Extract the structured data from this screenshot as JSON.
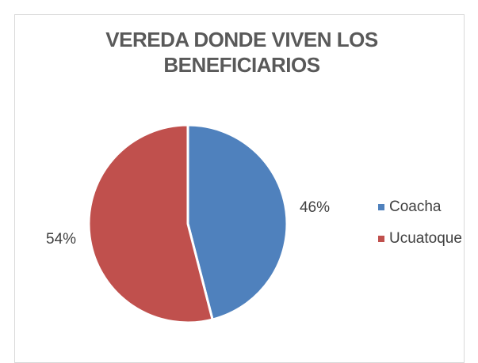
{
  "chart_data": {
    "type": "pie",
    "title": "VEREDA DONDE VIVEN LOS BENEFICIARIOS",
    "categories": [
      "Coacha",
      "Ucuatoque"
    ],
    "values": [
      46,
      54
    ],
    "value_labels": [
      "46%",
      "54%"
    ],
    "colors": [
      "#4f81bd",
      "#c0504d"
    ],
    "legend": "right"
  }
}
